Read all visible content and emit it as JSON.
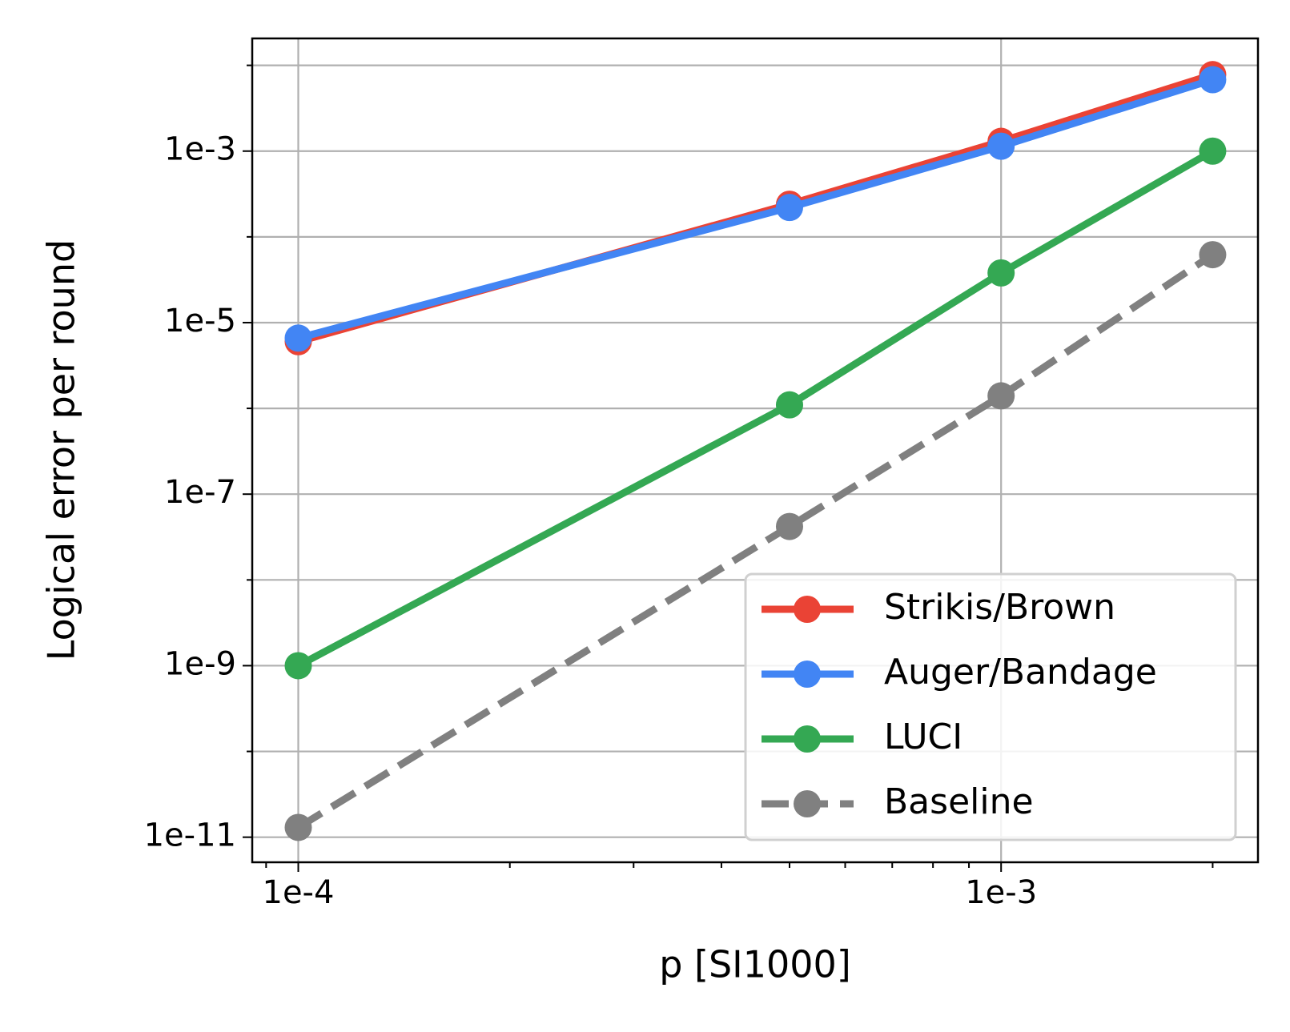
{
  "chart_data": {
    "type": "line",
    "xlabel": "p [SI1000]",
    "ylabel": "Logical error per round",
    "xscale": "log",
    "yscale": "log",
    "grid": true,
    "legend_loc": "lower right",
    "x": [
      0.0001,
      0.0005,
      0.001,
      0.002
    ],
    "series": [
      {
        "name": "Strikis/Brown",
        "color": "#ea4335",
        "linestyle": "solid",
        "values": [
          6e-06,
          0.00024,
          0.0013,
          0.0078
        ]
      },
      {
        "name": "Auger/Bandage",
        "color": "#4285f4",
        "linestyle": "solid",
        "values": [
          6.6e-06,
          0.00022,
          0.00114,
          0.0068
        ]
      },
      {
        "name": "LUCI",
        "color": "#34a853",
        "linestyle": "solid",
        "values": [
          1e-09,
          1.1e-06,
          3.8e-05,
          0.001
        ]
      },
      {
        "name": "Baseline",
        "color": "#808080",
        "linestyle": "dashed",
        "values": [
          1.3e-11,
          4.2e-08,
          1.4e-06,
          6.2e-05
        ]
      }
    ],
    "xlim": [
      8.6e-05,
      0.00232
    ],
    "ylim": [
      5.1e-12,
      0.0206
    ],
    "xticks": [
      {
        "value": 0.0001,
        "label": "1e-4"
      },
      {
        "value": 0.001,
        "label": "1e-3"
      }
    ],
    "x_minor_ticks": [
      9e-05,
      0.0002,
      0.0003,
      0.0004,
      0.0005,
      0.0006,
      0.0007,
      0.0008,
      0.0009,
      0.002
    ],
    "yticks": [
      {
        "value": 0.001,
        "label": "1e-3"
      },
      {
        "value": 1e-05,
        "label": "1e-5"
      },
      {
        "value": 1e-07,
        "label": "1e-7"
      },
      {
        "value": 1e-09,
        "label": "1e-9"
      },
      {
        "value": 1e-11,
        "label": "1e-11"
      }
    ],
    "y_minor_ticks": [
      0.01,
      0.0001,
      1e-06,
      1e-08,
      1e-10
    ]
  }
}
